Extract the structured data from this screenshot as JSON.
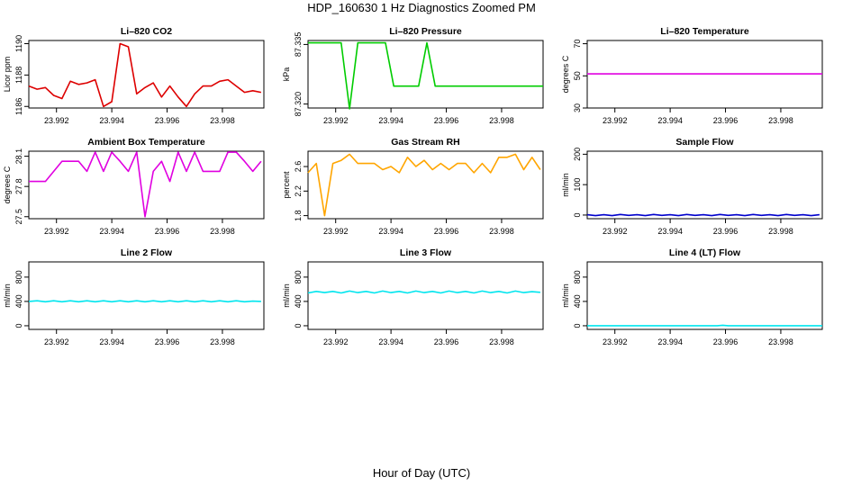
{
  "title": "HDP_160630  1 Hz Diagnostics Zoomed PM",
  "xlabel": "Hour of Day (UTC)",
  "chart_data": [
    {
      "type": "line",
      "title": "Li–820 CO2",
      "ylabel": "Licor ppm",
      "color": "#dd0000",
      "xlim": [
        23.991,
        23.9995
      ],
      "xticks": [
        23.992,
        23.994,
        23.996,
        23.998
      ],
      "xtick_labels": [
        "23.992",
        "23.994",
        "23.996",
        "23.998"
      ],
      "ylim": [
        1185.9,
        1190.2
      ],
      "yticks": [
        1186,
        1188,
        1190
      ],
      "ytick_labels": [
        "1186",
        "1188",
        "1190"
      ],
      "x": [
        23.991,
        23.9913,
        23.9916,
        23.9919,
        23.9922,
        23.9925,
        23.9928,
        23.9931,
        23.9934,
        23.9937,
        23.994,
        23.9943,
        23.9946,
        23.9949,
        23.9952,
        23.9955,
        23.9958,
        23.9961,
        23.9964,
        23.9967,
        23.997,
        23.9973,
        23.9976,
        23.9979,
        23.9982,
        23.9985,
        23.9988,
        23.9991,
        23.9994
      ],
      "y": [
        1187.3,
        1187.1,
        1187.2,
        1186.7,
        1186.5,
        1187.6,
        1187.4,
        1187.5,
        1187.7,
        1186.0,
        1186.3,
        1190.0,
        1189.8,
        1186.8,
        1187.2,
        1187.5,
        1186.6,
        1187.3,
        1186.6,
        1186.0,
        1186.8,
        1187.3,
        1187.3,
        1187.6,
        1187.7,
        1187.3,
        1186.9,
        1187.0,
        1186.9
      ]
    },
    {
      "type": "line",
      "title": "Li–820 Pressure",
      "ylabel": "kPa",
      "color": "#00cc00",
      "xlim": [
        23.991,
        23.9995
      ],
      "xticks": [
        23.992,
        23.994,
        23.996,
        23.998
      ],
      "xtick_labels": [
        "23.992",
        "23.994",
        "23.996",
        "23.998"
      ],
      "ylim": [
        87.319,
        87.336
      ],
      "yticks": [
        87.32,
        87.335
      ],
      "ytick_labels": [
        "87.320",
        "87.335"
      ],
      "x": [
        23.991,
        23.9922,
        23.9925,
        23.9928,
        23.9938,
        23.9941,
        23.9944,
        23.995,
        23.9953,
        23.9956,
        23.9959,
        23.9995
      ],
      "y": [
        87.3354,
        87.3354,
        87.3188,
        87.3354,
        87.3354,
        87.3245,
        87.3245,
        87.3245,
        87.3354,
        87.3245,
        87.3245,
        87.3245
      ]
    },
    {
      "type": "line",
      "title": "Li–820 Temperature",
      "ylabel": "degrees C",
      "color": "#e000e0",
      "xlim": [
        23.991,
        23.9995
      ],
      "xticks": [
        23.992,
        23.994,
        23.996,
        23.998
      ],
      "xtick_labels": [
        "23.992",
        "23.994",
        "23.996",
        "23.998"
      ],
      "ylim": [
        30,
        72
      ],
      "yticks": [
        30,
        50,
        70
      ],
      "ytick_labels": [
        "30",
        "50",
        "70"
      ],
      "x": [
        23.991,
        23.9995
      ],
      "y": [
        51.2,
        51.2
      ]
    },
    {
      "type": "line",
      "title": "Ambient Box Temperature",
      "ylabel": "degrees C",
      "color": "#e000e0",
      "xlim": [
        23.991,
        23.9995
      ],
      "xticks": [
        23.992,
        23.994,
        23.996,
        23.998
      ],
      "xtick_labels": [
        "23.992",
        "23.994",
        "23.996",
        "23.998"
      ],
      "ylim": [
        27.48,
        28.15
      ],
      "yticks": [
        27.5,
        27.8,
        28.1
      ],
      "ytick_labels": [
        "27.5",
        "27.8",
        "28.1"
      ],
      "x": [
        23.991,
        23.9916,
        23.9922,
        23.9928,
        23.9931,
        23.9934,
        23.9937,
        23.994,
        23.9943,
        23.9946,
        23.9949,
        23.9952,
        23.9955,
        23.9958,
        23.9961,
        23.9964,
        23.9967,
        23.997,
        23.9973,
        23.9976,
        23.9979,
        23.9982,
        23.9985,
        23.9988,
        23.9991,
        23.9994
      ],
      "y": [
        27.85,
        27.85,
        28.05,
        28.05,
        27.95,
        28.14,
        27.95,
        28.14,
        28.05,
        27.95,
        28.14,
        27.5,
        27.95,
        28.05,
        27.85,
        28.14,
        27.95,
        28.14,
        27.95,
        27.95,
        27.95,
        28.14,
        28.14,
        28.05,
        27.95,
        28.05
      ]
    },
    {
      "type": "line",
      "title": "Gas Stream RH",
      "ylabel": "percent",
      "color": "#ffa500",
      "xlim": [
        23.991,
        23.9995
      ],
      "xticks": [
        23.992,
        23.994,
        23.996,
        23.998
      ],
      "xtick_labels": [
        "23.992",
        "23.994",
        "23.996",
        "23.998"
      ],
      "ylim": [
        1.75,
        2.85
      ],
      "yticks": [
        1.8,
        2.2,
        2.6
      ],
      "ytick_labels": [
        "1.8",
        "2.2",
        "2.6"
      ],
      "x": [
        23.991,
        23.9913,
        23.9916,
        23.9919,
        23.9922,
        23.9925,
        23.9928,
        23.9931,
        23.9934,
        23.9937,
        23.994,
        23.9943,
        23.9946,
        23.9949,
        23.9952,
        23.9955,
        23.9958,
        23.9961,
        23.9964,
        23.9967,
        23.997,
        23.9973,
        23.9976,
        23.9979,
        23.9982,
        23.9985,
        23.9988,
        23.9991,
        23.9994
      ],
      "y": [
        2.5,
        2.65,
        1.8,
        2.65,
        2.7,
        2.8,
        2.65,
        2.65,
        2.65,
        2.55,
        2.6,
        2.5,
        2.75,
        2.6,
        2.7,
        2.55,
        2.65,
        2.55,
        2.65,
        2.65,
        2.5,
        2.65,
        2.5,
        2.75,
        2.75,
        2.8,
        2.55,
        2.75,
        2.55
      ]
    },
    {
      "type": "line",
      "title": "Sample Flow",
      "ylabel": "ml/min",
      "color": "#0000cc",
      "xlim": [
        23.991,
        23.9995
      ],
      "xticks": [
        23.992,
        23.994,
        23.996,
        23.998
      ],
      "xtick_labels": [
        "23.992",
        "23.994",
        "23.996",
        "23.998"
      ],
      "ylim": [
        -12,
        210
      ],
      "yticks": [
        0,
        100,
        200
      ],
      "ytick_labels": [
        "0",
        "100",
        "200"
      ],
      "x": [
        23.991,
        23.9913,
        23.9916,
        23.9919,
        23.9922,
        23.9925,
        23.9928,
        23.9931,
        23.9934,
        23.9937,
        23.994,
        23.9943,
        23.9946,
        23.9949,
        23.9952,
        23.9955,
        23.9958,
        23.9961,
        23.9964,
        23.9967,
        23.997,
        23.9973,
        23.9976,
        23.9979,
        23.9982,
        23.9985,
        23.9988,
        23.9991,
        23.9994
      ],
      "y": [
        1,
        -2,
        1,
        -2,
        2,
        -1,
        1,
        -2,
        2,
        -1,
        1,
        -2,
        2,
        -1,
        1,
        -2,
        2,
        -1,
        1,
        -2,
        2,
        -1,
        1,
        -2,
        2,
        -1,
        1,
        -2,
        1
      ]
    },
    {
      "type": "line",
      "title": "Line 2 Flow",
      "ylabel": "ml/min",
      "color": "#00e5ee",
      "xlim": [
        23.991,
        23.9995
      ],
      "xticks": [
        23.992,
        23.994,
        23.996,
        23.998
      ],
      "xtick_labels": [
        "23.992",
        "23.994",
        "23.996",
        "23.998"
      ],
      "ylim": [
        -60,
        1050
      ],
      "yticks": [
        0,
        400,
        800
      ],
      "ytick_labels": [
        "0",
        "400",
        "800"
      ],
      "x": [
        23.991,
        23.9913,
        23.9916,
        23.9919,
        23.9922,
        23.9925,
        23.9928,
        23.9931,
        23.9934,
        23.9937,
        23.994,
        23.9943,
        23.9946,
        23.9949,
        23.9952,
        23.9955,
        23.9958,
        23.9961,
        23.9964,
        23.9967,
        23.997,
        23.9973,
        23.9976,
        23.9979,
        23.9982,
        23.9985,
        23.9988,
        23.9991,
        23.9994
      ],
      "y": [
        400,
        410,
        395,
        410,
        395,
        410,
        395,
        410,
        395,
        410,
        395,
        410,
        395,
        410,
        395,
        410,
        395,
        410,
        395,
        410,
        395,
        410,
        395,
        410,
        395,
        410,
        395,
        405,
        400
      ]
    },
    {
      "type": "line",
      "title": "Line 3 Flow",
      "ylabel": "ml/min",
      "color": "#00e5ee",
      "xlim": [
        23.991,
        23.9995
      ],
      "xticks": [
        23.992,
        23.994,
        23.996,
        23.998
      ],
      "xtick_labels": [
        "23.992",
        "23.994",
        "23.996",
        "23.998"
      ],
      "ylim": [
        -60,
        1050
      ],
      "yticks": [
        0,
        400,
        800
      ],
      "ytick_labels": [
        "0",
        "400",
        "800"
      ],
      "x": [
        23.991,
        23.9913,
        23.9916,
        23.9919,
        23.9922,
        23.9925,
        23.9928,
        23.9931,
        23.9934,
        23.9937,
        23.994,
        23.9943,
        23.9946,
        23.9949,
        23.9952,
        23.9955,
        23.9958,
        23.9961,
        23.9964,
        23.9967,
        23.997,
        23.9973,
        23.9976,
        23.9979,
        23.9982,
        23.9985,
        23.9988,
        23.9991,
        23.9994
      ],
      "y": [
        540,
        565,
        545,
        565,
        540,
        570,
        545,
        565,
        540,
        570,
        545,
        565,
        540,
        570,
        545,
        565,
        540,
        570,
        545,
        565,
        540,
        570,
        545,
        565,
        540,
        570,
        545,
        560,
        550
      ]
    },
    {
      "type": "line",
      "title": "Line 4 (LT) Flow",
      "ylabel": "ml/min",
      "color": "#00e5ee",
      "xlim": [
        23.991,
        23.9995
      ],
      "xticks": [
        23.992,
        23.994,
        23.996,
        23.998
      ],
      "xtick_labels": [
        "23.992",
        "23.994",
        "23.996",
        "23.998"
      ],
      "ylim": [
        -60,
        1050
      ],
      "yticks": [
        0,
        400,
        800
      ],
      "ytick_labels": [
        "0",
        "400",
        "800"
      ],
      "x": [
        23.991,
        23.9957,
        23.9959,
        23.9961,
        23.9995
      ],
      "y": [
        0,
        0,
        8,
        0,
        0
      ]
    }
  ]
}
